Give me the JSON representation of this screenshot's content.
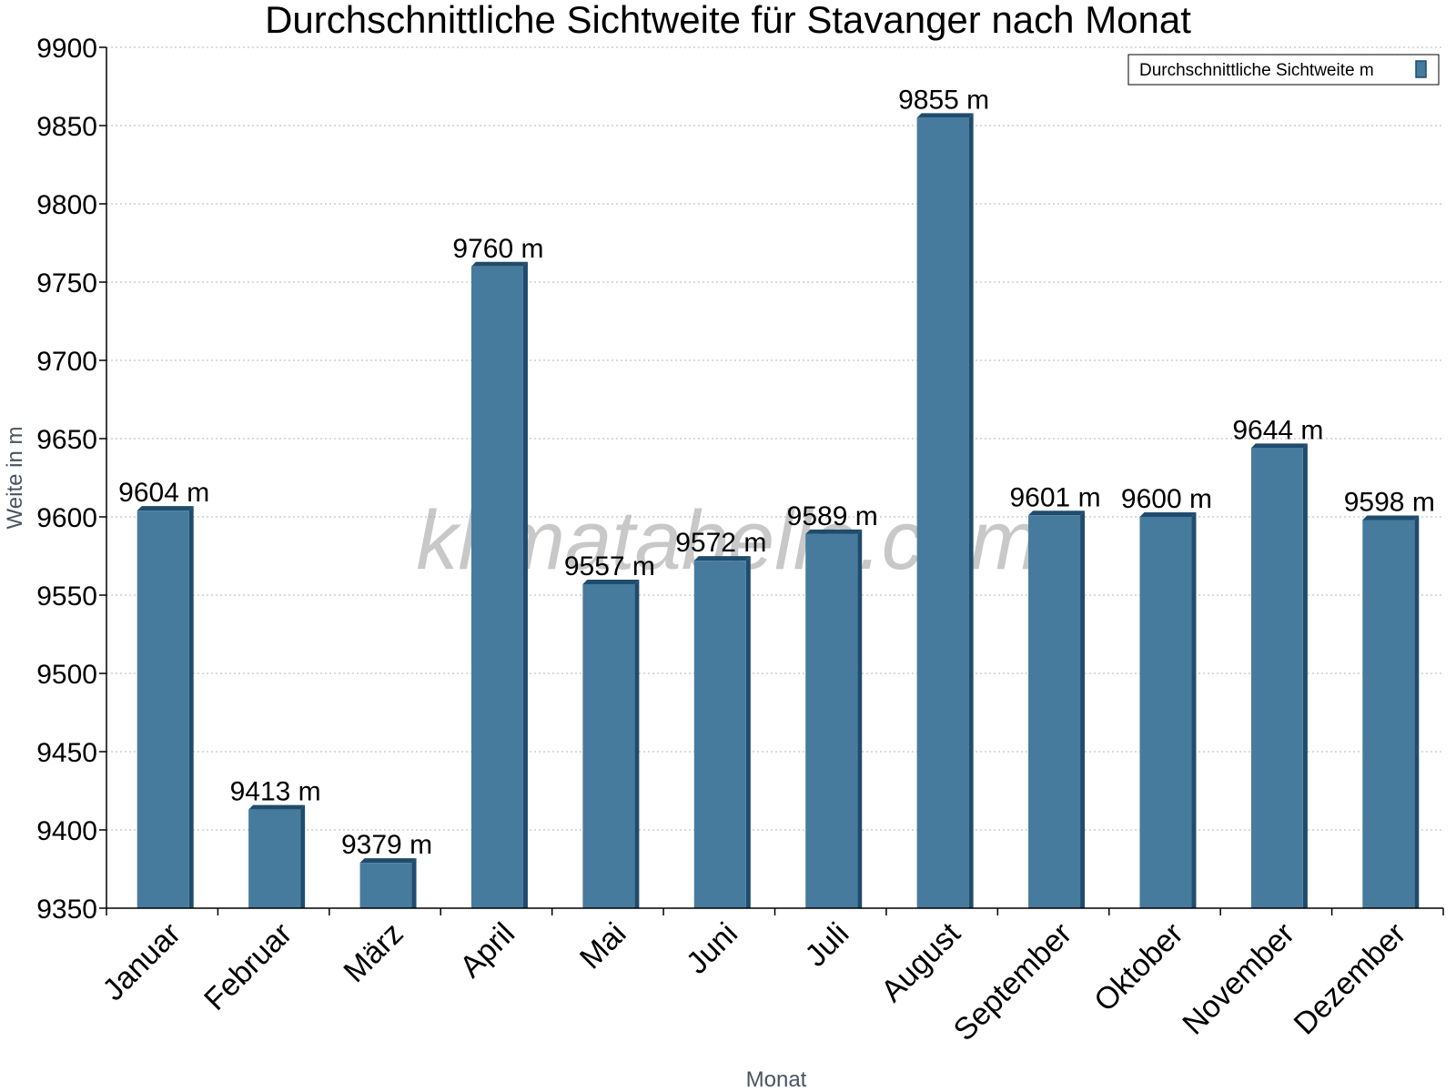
{
  "chart_data": {
    "type": "bar",
    "title": "Durchschnittliche Sichtweite für Stavanger nach Monat",
    "xlabel": "Monat",
    "ylabel": "Weite in m",
    "ylim": [
      9350,
      9900
    ],
    "yticks": [
      9350,
      9400,
      9450,
      9500,
      9550,
      9600,
      9650,
      9700,
      9750,
      9800,
      9850,
      9900
    ],
    "grid": true,
    "legend_position": "top-right",
    "categories": [
      "Januar",
      "Februar",
      "März",
      "April",
      "Mai",
      "Juni",
      "Juli",
      "August",
      "September",
      "Oktober",
      "November",
      "Dezember"
    ],
    "series": [
      {
        "name": "Durchschnittliche Sichtweite m",
        "color": "#477b9d",
        "values": [
          9604,
          9413,
          9379,
          9760,
          9557,
          9572,
          9589,
          9855,
          9601,
          9600,
          9644,
          9598
        ],
        "labels": [
          "9604 m",
          "9413 m",
          "9379 m",
          "9760 m",
          "9557 m",
          "9572 m",
          "9589 m",
          "9855 m",
          "9601 m",
          "9600 m",
          "9644 m",
          "9598 m"
        ]
      }
    ]
  },
  "watermark": "klimatabelle.com"
}
